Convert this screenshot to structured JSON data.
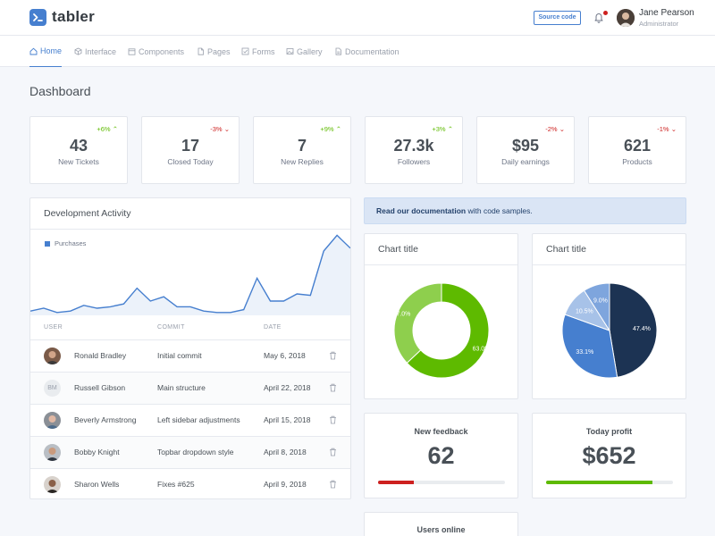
{
  "brand": {
    "name": "tabler"
  },
  "header": {
    "source_code_label": "Source code",
    "user": {
      "name": "Jane Pearson",
      "role": "Administrator"
    }
  },
  "nav": {
    "items": [
      {
        "label": "Home",
        "icon": "home-icon",
        "active": true
      },
      {
        "label": "Interface",
        "icon": "box-icon",
        "active": false
      },
      {
        "label": "Components",
        "icon": "calendar-icon",
        "active": false
      },
      {
        "label": "Pages",
        "icon": "file-icon",
        "active": false
      },
      {
        "label": "Forms",
        "icon": "check-square-icon",
        "active": false
      },
      {
        "label": "Gallery",
        "icon": "image-icon",
        "active": false
      },
      {
        "label": "Documentation",
        "icon": "file-text-icon",
        "active": false
      }
    ]
  },
  "page_title": "Dashboard",
  "stats": [
    {
      "change": "+6%",
      "direction": "up",
      "value": "43",
      "label": "New Tickets"
    },
    {
      "change": "-3%",
      "direction": "down",
      "value": "17",
      "label": "Closed Today"
    },
    {
      "change": "+9%",
      "direction": "up",
      "value": "7",
      "label": "New Replies"
    },
    {
      "change": "+3%",
      "direction": "up",
      "value": "27.3k",
      "label": "Followers"
    },
    {
      "change": "-2%",
      "direction": "down",
      "value": "$95",
      "label": "Daily earnings"
    },
    {
      "change": "-1%",
      "direction": "down",
      "value": "621",
      "label": "Products"
    }
  ],
  "development_activity": {
    "title": "Development Activity",
    "legend": "Purchases",
    "series_color": "#467fcf",
    "purchases": [
      3,
      5,
      2,
      3,
      7,
      5,
      6,
      8,
      19,
      10,
      13,
      6,
      6,
      3,
      2,
      2,
      4,
      26,
      10,
      10,
      15,
      14,
      45,
      56,
      47
    ],
    "table": {
      "headers": {
        "user": "USER",
        "commit": "COMMIT",
        "date": "DATE"
      },
      "rows": [
        {
          "user": "Ronald Bradley",
          "initials": "",
          "commit": "Initial commit",
          "date": "May 6, 2018"
        },
        {
          "user": "Russell Gibson",
          "initials": "BM",
          "commit": "Main structure",
          "date": "April 22, 2018"
        },
        {
          "user": "Beverly Armstrong",
          "initials": "",
          "commit": "Left sidebar adjustments",
          "date": "April 15, 2018"
        },
        {
          "user": "Bobby Knight",
          "initials": "",
          "commit": "Topbar dropdown style",
          "date": "April 8, 2018"
        },
        {
          "user": "Sharon Wells",
          "initials": "",
          "commit": "Fixes #625",
          "date": "April 9, 2018"
        }
      ]
    }
  },
  "alert": {
    "link_text": "Read our documentation",
    "rest_text": " with code samples."
  },
  "chart_data": [
    {
      "type": "pie",
      "variant": "donut",
      "title": "Chart title",
      "categories": [
        "",
        ""
      ],
      "values": [
        63.0,
        37.0
      ],
      "labels": [
        "63.0%",
        "37.0%"
      ],
      "colors": [
        "#5eba00",
        "#8ecf4d"
      ]
    },
    {
      "type": "pie",
      "title": "Chart title",
      "categories": [
        "",
        "",
        "",
        ""
      ],
      "values": [
        47.4,
        33.1,
        10.5,
        9.0
      ],
      "labels": [
        "47.4%",
        "33.1%",
        "10.5%",
        "9.0%"
      ],
      "colors": [
        "#1c3353",
        "#467fcf",
        "#a7c2e8",
        "#7ea5dd"
      ]
    }
  ],
  "feedback": {
    "label": "New feedback",
    "value": "62",
    "progress": 0.28,
    "color": "#cd201f"
  },
  "profit": {
    "label": "Today profit",
    "value": "$652",
    "progress": 0.84,
    "color": "#5eba00"
  },
  "users_online": {
    "label": "Users online"
  }
}
